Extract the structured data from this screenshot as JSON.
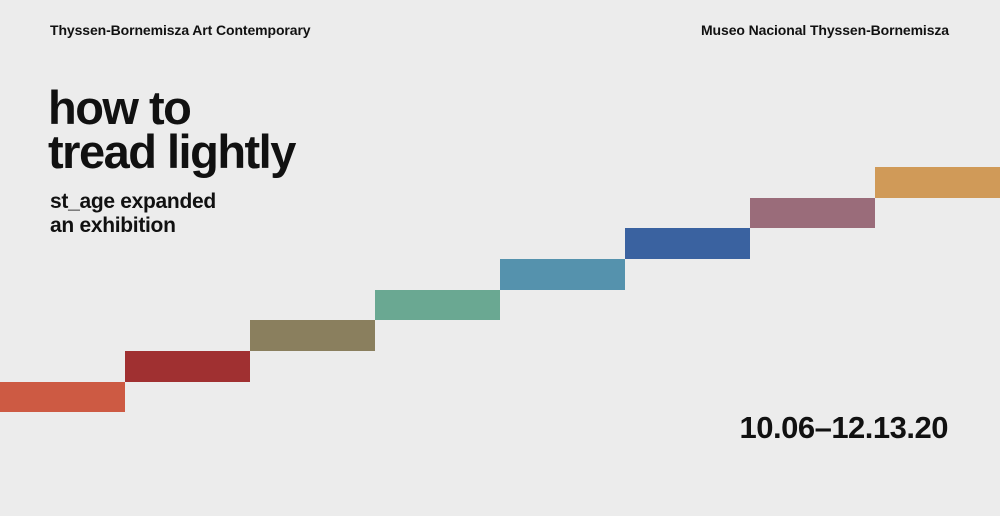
{
  "header": {
    "left": "Thyssen-Bornemisza Art Contemporary",
    "right": "Museo Nacional Thyssen-Bornemisza"
  },
  "title": {
    "lines": [
      "how to",
      "tread lightly"
    ]
  },
  "subtitle": {
    "lines": [
      "st_age expanded",
      "an exhibition"
    ]
  },
  "dates": "10.06–12.13.20"
}
